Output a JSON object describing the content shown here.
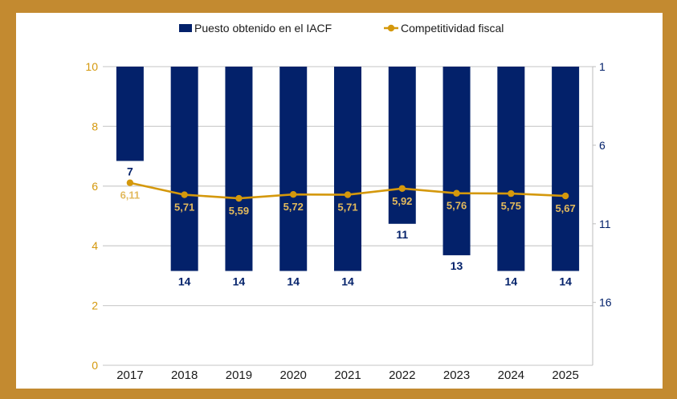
{
  "chart_data": {
    "type": "bar+line",
    "categories": [
      "2017",
      "2018",
      "2019",
      "2020",
      "2021",
      "2022",
      "2023",
      "2024",
      "2025"
    ],
    "series": [
      {
        "name": "Puesto obtenido en el IACF",
        "type": "bar",
        "axis": "right",
        "values": [
          7,
          14,
          14,
          14,
          14,
          11,
          13,
          14,
          14
        ],
        "labels": [
          "7",
          "14",
          "14",
          "14",
          "14",
          "11",
          "13",
          "14",
          "14"
        ],
        "color": "#03216A"
      },
      {
        "name": "Competitividad fiscal",
        "type": "line",
        "axis": "left",
        "values": [
          6.11,
          5.71,
          5.59,
          5.72,
          5.71,
          5.92,
          5.76,
          5.75,
          5.67
        ],
        "labels": [
          "6,11",
          "5,71",
          "5,59",
          "5,72",
          "5,71",
          "5,92",
          "5,76",
          "5,75",
          "5,67"
        ],
        "color": "#D4980C"
      }
    ],
    "left_axis": {
      "range": [
        0,
        10
      ],
      "ticks": [
        "0",
        "2",
        "4",
        "6",
        "8",
        "10"
      ],
      "color": "#D4980C"
    },
    "right_axis": {
      "range": [
        1,
        20
      ],
      "reversed": true,
      "ticks": [
        "1",
        "6",
        "11",
        "16"
      ],
      "color": "#03216A"
    },
    "grid": true,
    "legend": "top-center",
    "colors": {
      "frame": "#C38A30",
      "line_label": "#E2B95C"
    }
  }
}
